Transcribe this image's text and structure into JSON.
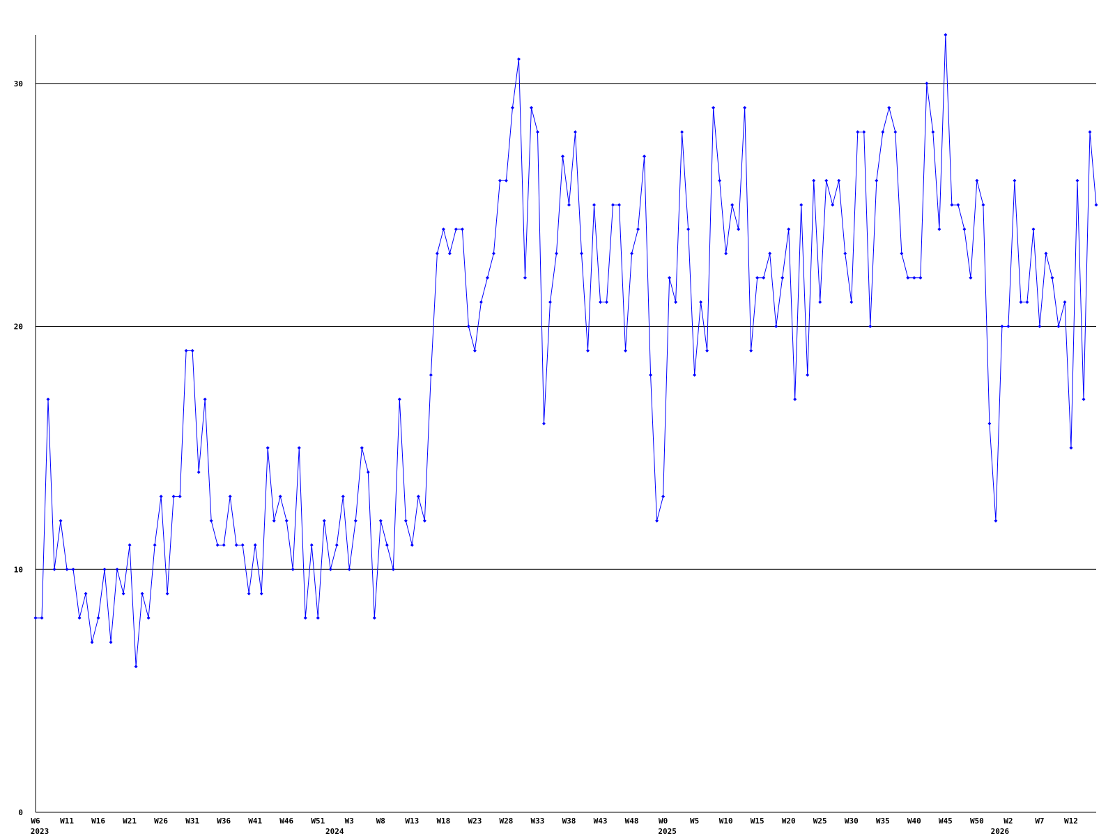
{
  "chart_data": {
    "type": "line",
    "categories": [
      "W6",
      null,
      null,
      null,
      null,
      "W11",
      null,
      null,
      null,
      null,
      "W16",
      null,
      null,
      null,
      null,
      "W21",
      null,
      null,
      null,
      null,
      "W26",
      null,
      null,
      null,
      null,
      "W31",
      null,
      null,
      null,
      null,
      "W36",
      null,
      null,
      null,
      null,
      "W41",
      null,
      null,
      null,
      null,
      "W46",
      null,
      null,
      null,
      null,
      "W51",
      null,
      null,
      null,
      null,
      "W3",
      null,
      null,
      null,
      null,
      "W8",
      null,
      null,
      null,
      null,
      "W13",
      null,
      null,
      null,
      null,
      "W18",
      null,
      null,
      null,
      null,
      "W23",
      null,
      null,
      null,
      null,
      "W28",
      null,
      null,
      null,
      null,
      "W33",
      null,
      null,
      null,
      null,
      "W38",
      null,
      null,
      null,
      null,
      "W43",
      null,
      null,
      null,
      null,
      "W48",
      null,
      null,
      null,
      null,
      "W0",
      null,
      null,
      null,
      null,
      "W5",
      null,
      null,
      null,
      null,
      "W10",
      null,
      null,
      null,
      null,
      "W15",
      null,
      null,
      null,
      null,
      "W20",
      null,
      null,
      null,
      null,
      "W25",
      null,
      null,
      null,
      null,
      "W30",
      null,
      null,
      null,
      null,
      "W35",
      null,
      null,
      null,
      null,
      "W40",
      null,
      null,
      null,
      null,
      "W45",
      null,
      null,
      null,
      null,
      "W50",
      null,
      null,
      null,
      null,
      "W2",
      null,
      null,
      null,
      null,
      "W7",
      null,
      null,
      null,
      null,
      "W12",
      null,
      null,
      null,
      null
    ],
    "category_years": [
      "2023",
      null,
      null,
      null,
      null,
      null,
      null,
      null,
      null,
      null,
      null,
      null,
      null,
      null,
      null,
      null,
      null,
      null,
      null,
      null,
      null,
      null,
      null,
      null,
      null,
      null,
      null,
      null,
      null,
      null,
      null,
      null,
      null,
      null,
      null,
      null,
      null,
      null,
      null,
      null,
      null,
      null,
      null,
      null,
      null,
      null,
      null,
      "2024",
      null,
      null,
      null,
      null,
      null,
      null,
      null,
      null,
      null,
      null,
      null,
      null,
      null,
      null,
      null,
      null,
      null,
      null,
      null,
      null,
      null,
      null,
      null,
      null,
      null,
      null,
      null,
      null,
      null,
      null,
      null,
      null,
      null,
      null,
      null,
      null,
      null,
      null,
      null,
      null,
      null,
      null,
      null,
      null,
      null,
      null,
      null,
      null,
      null,
      null,
      null,
      null,
      "2025",
      null,
      null,
      null,
      null,
      null,
      null,
      null,
      null,
      null,
      null,
      null,
      null,
      null,
      null,
      null,
      null,
      null,
      null,
      null,
      null,
      null,
      null,
      null,
      null,
      null,
      null,
      null,
      null,
      null,
      null,
      null,
      null,
      null,
      null,
      null,
      null,
      null,
      null,
      null,
      null,
      null,
      null,
      null,
      null,
      null,
      null,
      null,
      null,
      null,
      null,
      null,
      null,
      "2026",
      null,
      null,
      null,
      null,
      null,
      null,
      null,
      null,
      null,
      null,
      null,
      null,
      null,
      null,
      null,
      null
    ],
    "series": [
      {
        "color": "#0000ff",
        "values": [
          8,
          8,
          17,
          10,
          12,
          10,
          10,
          8,
          9,
          7,
          8,
          10,
          7,
          10,
          9,
          11,
          6,
          9,
          8,
          11,
          13,
          9,
          13,
          13,
          19,
          19,
          14,
          17,
          12,
          11,
          11,
          13,
          11,
          11,
          9,
          11,
          9,
          15,
          12,
          13,
          12,
          10,
          15,
          8,
          11,
          8,
          12,
          10,
          11,
          13,
          10,
          12,
          15,
          14,
          8,
          12,
          11,
          10,
          17,
          12,
          11,
          13,
          12,
          18,
          23,
          24,
          23,
          24,
          24,
          20,
          19,
          21,
          22,
          23,
          26,
          26,
          29,
          31,
          22,
          29,
          28,
          16,
          21,
          23,
          27,
          25,
          28,
          23,
          19,
          25,
          21,
          21,
          25,
          25,
          19,
          23,
          24,
          27,
          18,
          12,
          13,
          22,
          21,
          28,
          24,
          18,
          21,
          19,
          29,
          26,
          23,
          25,
          24,
          29,
          19,
          22,
          22,
          23,
          20,
          22,
          24,
          17,
          25,
          18,
          26,
          21,
          26,
          25,
          26,
          23,
          21,
          28,
          28,
          20,
          26,
          28,
          29,
          28,
          23,
          22,
          22,
          22,
          30,
          28,
          24,
          32,
          25,
          25,
          24,
          22,
          26,
          25,
          16,
          12,
          20,
          20,
          26,
          21,
          21,
          24,
          20,
          23,
          22,
          20,
          21,
          15,
          26,
          17,
          28,
          25
        ]
      }
    ],
    "ylim": [
      0,
      32
    ],
    "yticks": [
      0,
      10,
      20,
      30
    ],
    "grid": true
  }
}
